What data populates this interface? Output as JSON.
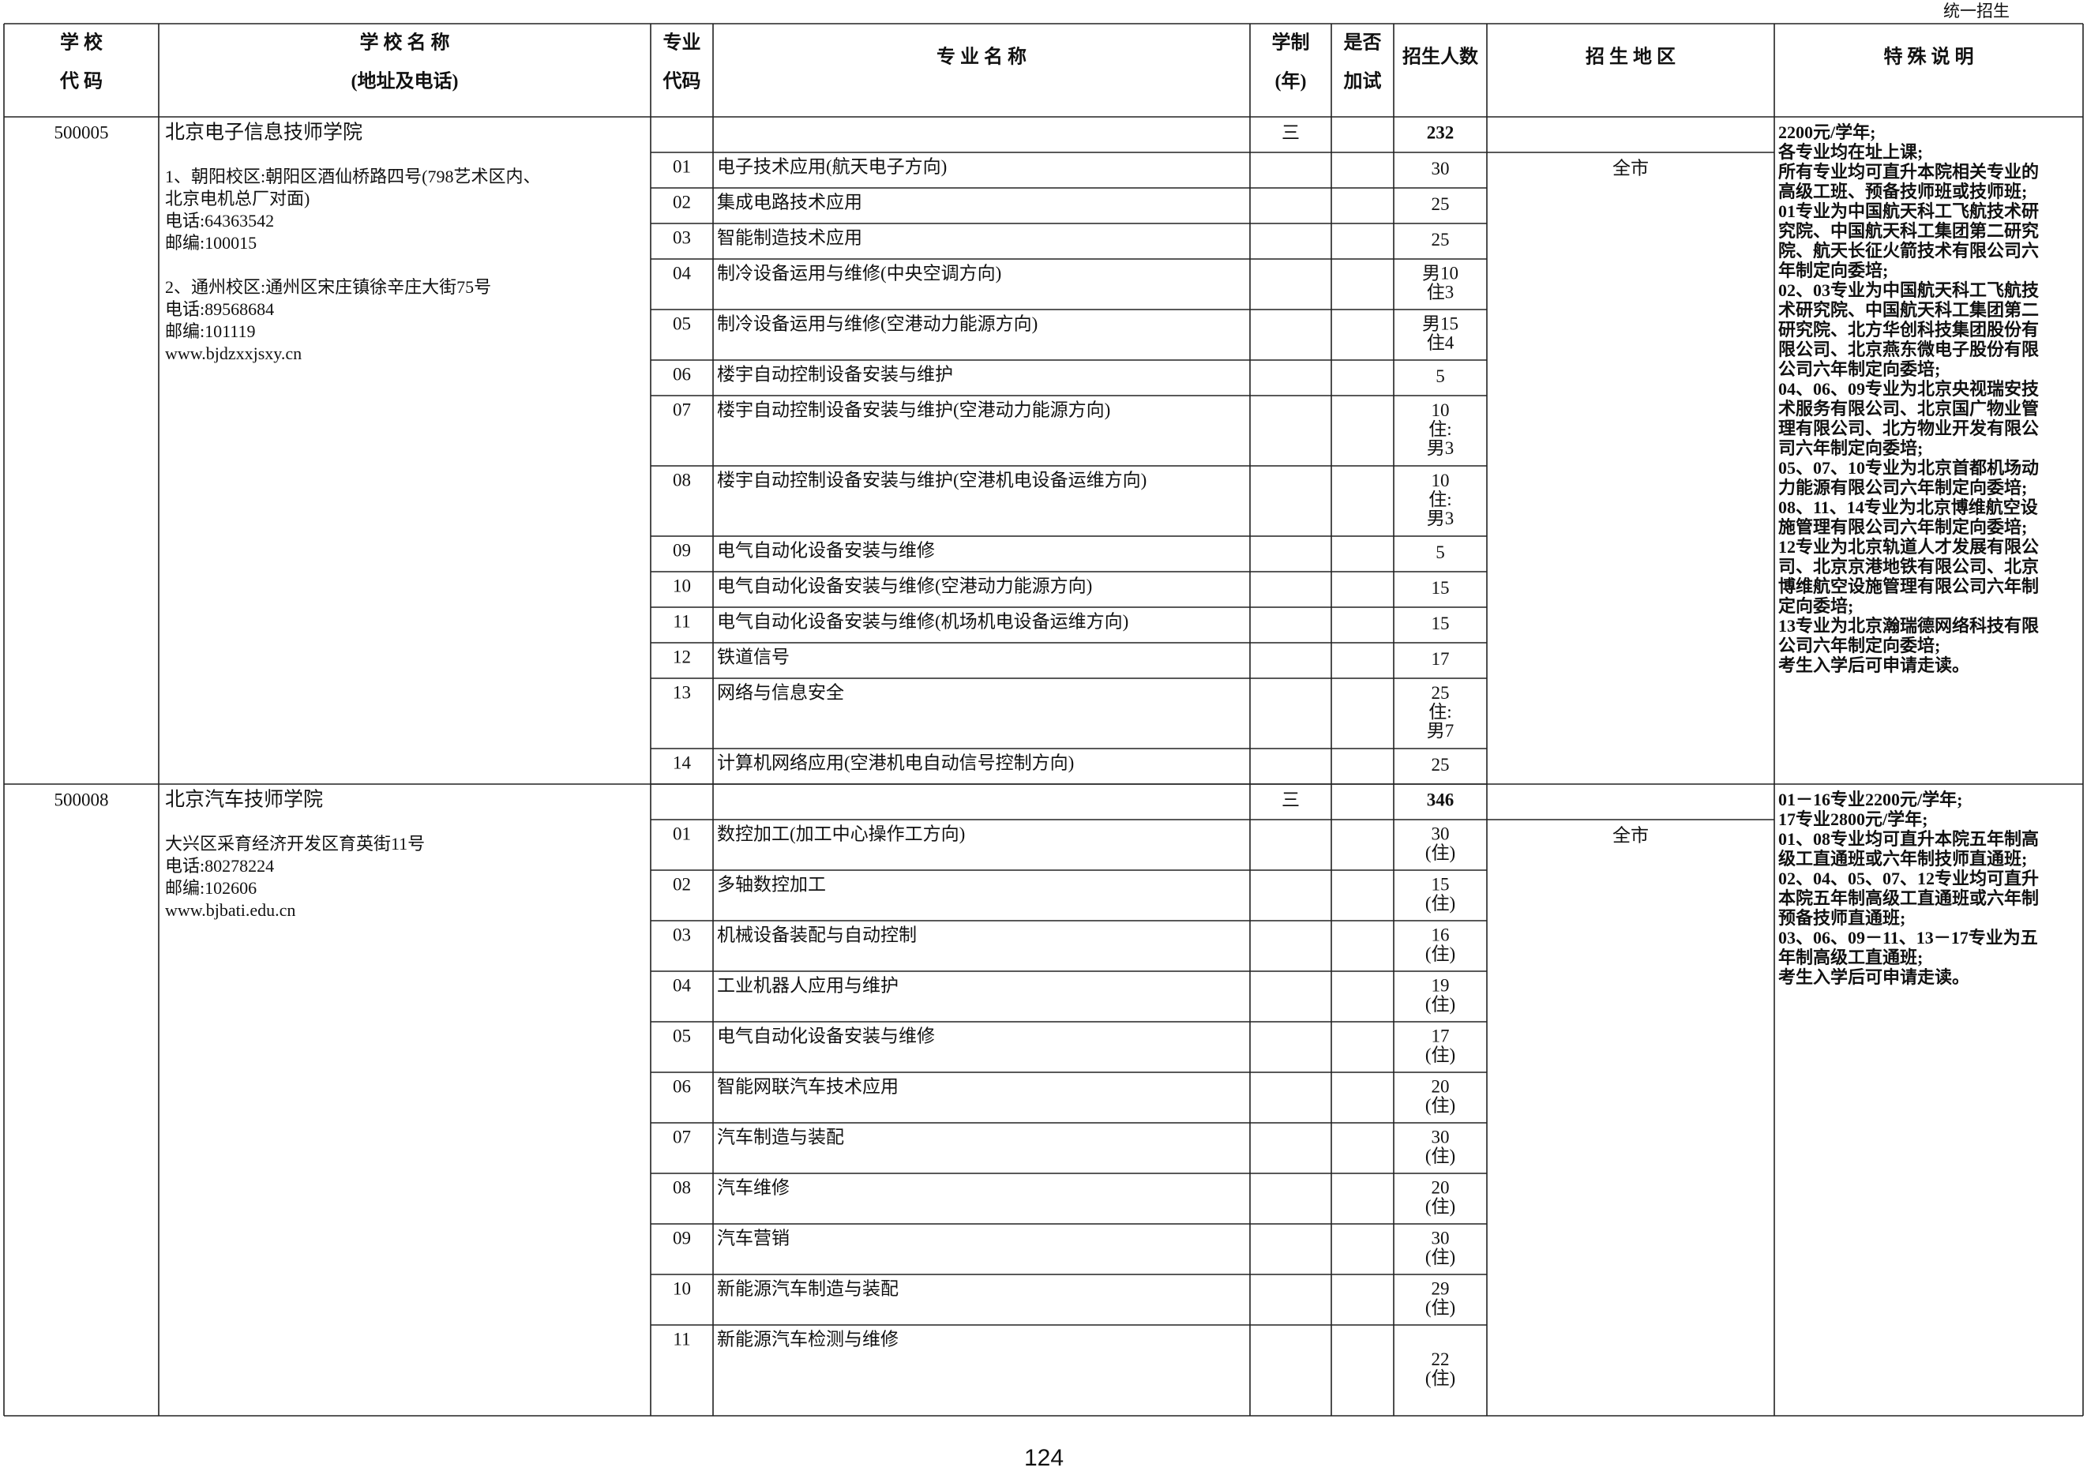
{
  "header": {
    "tag": "统一招生",
    "columns": [
      [
        "学 校",
        "代 码"
      ],
      [
        "学 校 名 称",
        "(地址及电话)"
      ],
      [
        "专业",
        "代码"
      ],
      [
        "专 业 名 称"
      ],
      [
        "学制",
        "(年)"
      ],
      [
        "是否",
        "加试"
      ],
      [
        "招生人数"
      ],
      [
        "招 生 地 区"
      ],
      [
        "特 殊 说 明"
      ]
    ]
  },
  "schools": [
    {
      "code": 500005,
      "name": "北京电子信息技师学院",
      "address": [
        [
          "1、朝阳校区:朝阳区酒仙桥路四号(798艺术区内、",
          "北京电机总厂对面)",
          "电话:64363542",
          "邮编:100015"
        ],
        [
          "2、通州校区:通州区宋庄镇徐辛庄大街75号",
          "电话:89568684",
          "邮编:101119",
          "www.bjdzxxjsxy.cn"
        ]
      ],
      "years": "三",
      "total": 232,
      "region": "全市",
      "notes": [
        "2200元/学年;",
        "各专业均在址上课;",
        "所有专业均可直升本院相关专业的",
        "高级工班、预备技师班或技师班;",
        "01专业为中国航天科工飞航技术研",
        "究院、中国航天科工集团第二研究",
        "院、航天长征火箭技术有限公司六",
        "年制定向委培;",
        "02、03专业为中国航天科工飞航技",
        "术研究院、中国航天科工集团第二",
        "研究院、北方华创科技集团股份有",
        "限公司、北京燕东微电子股份有限",
        "公司六年制定向委培;",
        "04、06、09专业为北京央视瑞安技",
        "术服务有限公司、北京国广物业管",
        "理有限公司、北方物业开发有限公",
        "司六年制定向委培;",
        "05、07、10专业为北京首都机场动",
        "力能源有限公司六年制定向委培;",
        "08、11、14专业为北京博维航空设",
        "施管理有限公司六年制定向委培;",
        "12专业为北京轨道人才发展有限公",
        "司、北京京港地铁有限公司、北京",
        "博维航空设施管理有限公司六年制",
        "定向委培;",
        "13专业为北京瀚瑞德网络科技有限",
        "公司六年制定向委培;",
        "考生入学后可申请走读。"
      ],
      "programs": [
        {
          "code": "01",
          "name": "电子技术应用(航天电子方向)",
          "enrollment": [
            30
          ]
        },
        {
          "code": "02",
          "name": "集成电路技术应用",
          "enrollment": [
            25
          ]
        },
        {
          "code": "03",
          "name": "智能制造技术应用",
          "enrollment": [
            25
          ]
        },
        {
          "code": "04",
          "name": "制冷设备运用与维修(中央空调方向)",
          "enrollment": [
            "男10",
            "住3"
          ]
        },
        {
          "code": "05",
          "name": "制冷设备运用与维修(空港动力能源方向)",
          "enrollment": [
            "男15",
            "住4"
          ]
        },
        {
          "code": "06",
          "name": "楼宇自动控制设备安装与维护",
          "enrollment": [
            5
          ]
        },
        {
          "code": "07",
          "name": "楼宇自动控制设备安装与维护(空港动力能源方向)",
          "enrollment": [
            10,
            "住:",
            "男3"
          ]
        },
        {
          "code": "08",
          "name": "楼宇自动控制设备安装与维护(空港机电设备运维方向)",
          "enrollment": [
            10,
            "住:",
            "男3"
          ]
        },
        {
          "code": "09",
          "name": "电气自动化设备安装与维修",
          "enrollment": [
            5
          ]
        },
        {
          "code": "10",
          "name": "电气自动化设备安装与维修(空港动力能源方向)",
          "enrollment": [
            15
          ]
        },
        {
          "code": "11",
          "name": "电气自动化设备安装与维修(机场机电设备运维方向)",
          "enrollment": [
            15
          ]
        },
        {
          "code": "12",
          "name": "铁道信号",
          "enrollment": [
            17
          ]
        },
        {
          "code": "13",
          "name": "网络与信息安全",
          "enrollment": [
            25,
            "住:",
            "男7"
          ]
        },
        {
          "code": "14",
          "name": "计算机网络应用(空港机电自动信号控制方向)",
          "enrollment": [
            25
          ]
        }
      ]
    },
    {
      "code": 500008,
      "name": "北京汽车技师学院",
      "address": [
        [
          "大兴区采育经济开发区育英街11号",
          "电话:80278224",
          "邮编:102606",
          "www.bjbati.edu.cn"
        ]
      ],
      "years": "三",
      "total": 346,
      "region": "全市",
      "notes": [
        "01－16专业2200元/学年;",
        "17专业2800元/学年;",
        "01、08专业均可直升本院五年制高",
        "级工直通班或六年制技师直通班;",
        "02、04、05、07、12专业均可直升",
        "本院五年制高级工直通班或六年制",
        "预备技师直通班;",
        "03、06、09－11、13－17专业为五",
        "年制高级工直通班;",
        "考生入学后可申请走读。"
      ],
      "programs": [
        {
          "code": "01",
          "name": "数控加工(加工中心操作工方向)",
          "enrollment": [
            30,
            "(住)"
          ]
        },
        {
          "code": "02",
          "name": "多轴数控加工",
          "enrollment": [
            15,
            "(住)"
          ]
        },
        {
          "code": "03",
          "name": "机械设备装配与自动控制",
          "enrollment": [
            16,
            "(住)"
          ]
        },
        {
          "code": "04",
          "name": "工业机器人应用与维护",
          "enrollment": [
            19,
            "(住)"
          ]
        },
        {
          "code": "05",
          "name": "电气自动化设备安装与维修",
          "enrollment": [
            17,
            "(住)"
          ]
        },
        {
          "code": "06",
          "name": "智能网联汽车技术应用",
          "enrollment": [
            20,
            "(住)"
          ]
        },
        {
          "code": "07",
          "name": "汽车制造与装配",
          "enrollment": [
            30,
            "(住)"
          ]
        },
        {
          "code": "08",
          "name": "汽车维修",
          "enrollment": [
            20,
            "(住)"
          ]
        },
        {
          "code": "09",
          "name": "汽车营销",
          "enrollment": [
            30,
            "(住)"
          ]
        },
        {
          "code": "10",
          "name": "新能源汽车制造与装配",
          "enrollment": [
            29,
            "(住)"
          ]
        },
        {
          "code": "11",
          "name": "新能源汽车检测与维修",
          "enrollment": [
            22,
            "(住)"
          ]
        }
      ]
    }
  ],
  "page_number": 124
}
